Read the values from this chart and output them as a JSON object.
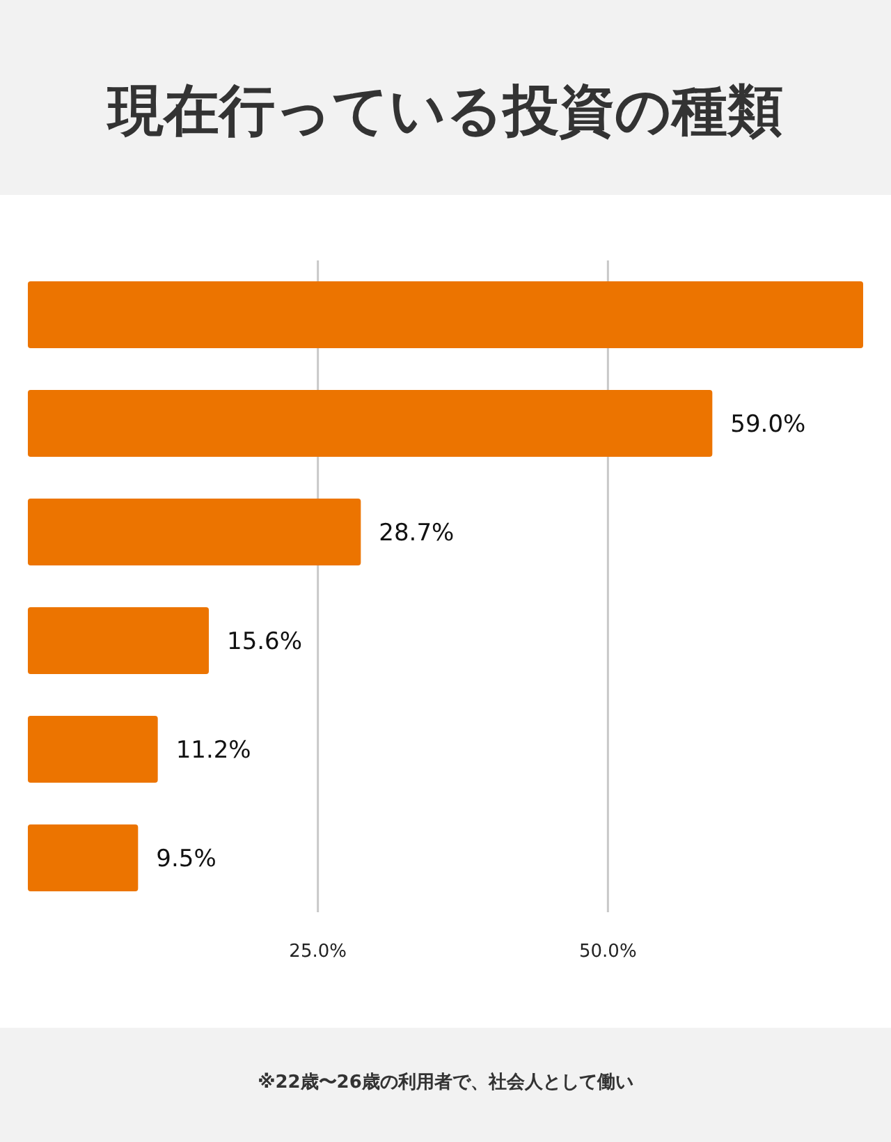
{
  "chart_data": {
    "type": "bar",
    "orientation": "horizontal",
    "title": "現在行っている投資の種類",
    "categories": [
      null,
      null,
      null,
      null,
      null,
      null
    ],
    "values": [
      72,
      59.0,
      28.7,
      15.6,
      11.2,
      9.5
    ],
    "value_labels": [
      null,
      "59.0%",
      "28.7%",
      "15.6%",
      "11.2%",
      "9.5%"
    ],
    "color": "#ec7400",
    "xlim": [
      0,
      72
    ],
    "xticks": [
      {
        "value": 25,
        "label": "25.0%"
      },
      {
        "value": 50,
        "label": "50.0%"
      }
    ],
    "grid": "x",
    "annotations": [
      "※22歳〜26歳の利用者で、社会人として働い"
    ]
  }
}
